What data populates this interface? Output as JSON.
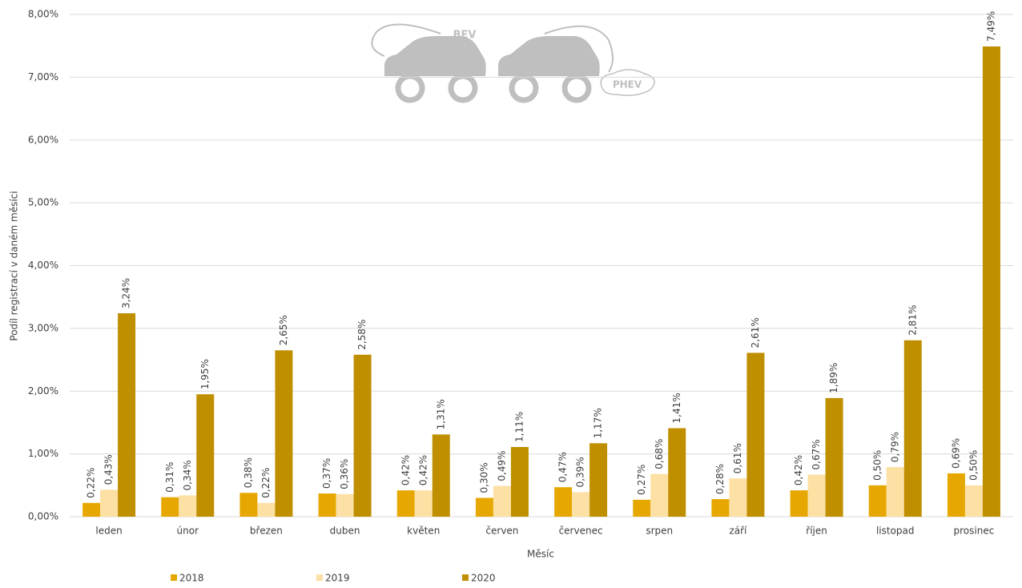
{
  "chart_data": {
    "type": "bar",
    "y_label": "Podíl registrací v daném měsíci",
    "x_label": "Měsíc",
    "annotations": [
      "BEV",
      "PHEV"
    ],
    "categories": [
      "leden",
      "únor",
      "březen",
      "duben",
      "květen",
      "červen",
      "červenec",
      "srpen",
      "září",
      "říjen",
      "listopad",
      "prosinec"
    ],
    "series": [
      {
        "name": "2018",
        "color": "#e6a800",
        "values": [
          0.22,
          0.31,
          0.38,
          0.37,
          0.42,
          0.3,
          0.47,
          0.27,
          0.28,
          0.42,
          0.5,
          0.69
        ],
        "value_labels": [
          "0,22%",
          "0,31%",
          "0,38%",
          "0,37%",
          "0,42%",
          "0,30%",
          "0,47%",
          "0,27%",
          "0,28%",
          "0,42%",
          "0,50%",
          "0,69%"
        ]
      },
      {
        "name": "2019",
        "color": "#fde0a4",
        "values": [
          0.43,
          0.34,
          0.22,
          0.36,
          0.42,
          0.49,
          0.39,
          0.68,
          0.61,
          0.67,
          0.79,
          0.5
        ],
        "value_labels": [
          "0,43%",
          "0,34%",
          "0,22%",
          "0,36%",
          "0,42%",
          "0,49%",
          "0,39%",
          "0,68%",
          "0,61%",
          "0,67%",
          "0,79%",
          "0,50%"
        ]
      },
      {
        "name": "2020",
        "color": "#bf8f00",
        "values": [
          3.24,
          1.95,
          2.65,
          2.58,
          1.31,
          1.11,
          1.17,
          1.41,
          2.61,
          1.89,
          2.81,
          7.49
        ],
        "value_labels": [
          "3,24%",
          "1,95%",
          "2,65%",
          "2,58%",
          "1,31%",
          "1,11%",
          "1,17%",
          "1,41%",
          "2,61%",
          "1,89%",
          "2,81%",
          "7,49%"
        ]
      }
    ],
    "ylim": [
      0,
      8
    ],
    "yticks": [
      {
        "value": 0,
        "label": "0,00%"
      },
      {
        "value": 1,
        "label": "1,00%"
      },
      {
        "value": 2,
        "label": "2,00%"
      },
      {
        "value": 3,
        "label": "3,00%"
      },
      {
        "value": 4,
        "label": "4,00%"
      },
      {
        "value": 5,
        "label": "5,00%"
      },
      {
        "value": 6,
        "label": "6,00%"
      },
      {
        "value": 7,
        "label": "7,00%"
      },
      {
        "value": 8,
        "label": "8,00%"
      }
    ],
    "grid": true
  }
}
